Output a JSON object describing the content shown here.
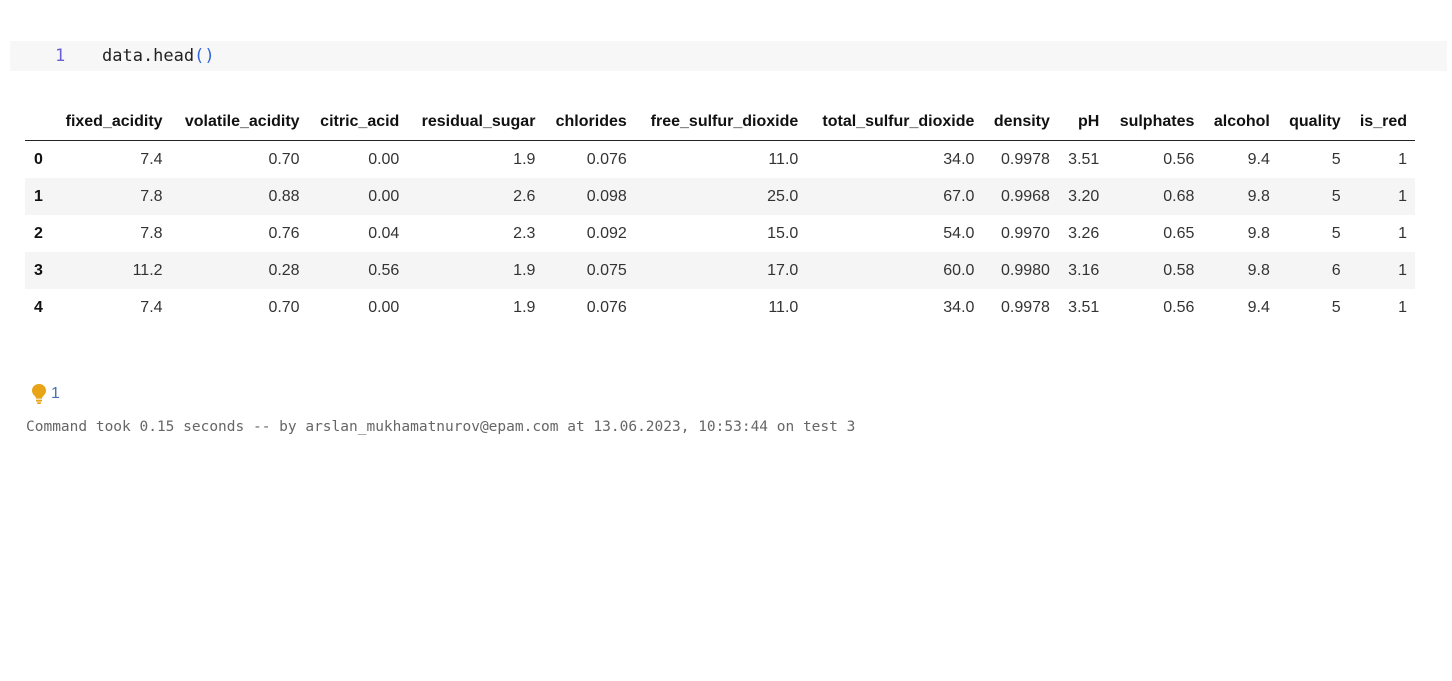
{
  "code_cell": {
    "line_number": "1",
    "code_prefix": "data.head",
    "code_parens": "()"
  },
  "table": {
    "columns": [
      "",
      "fixed_acidity",
      "volatile_acidity",
      "citric_acid",
      "residual_sugar",
      "chlorides",
      "free_sulfur_dioxide",
      "total_sulfur_dioxide",
      "density",
      "pH",
      "sulphates",
      "alcohol",
      "quality",
      "is_red"
    ],
    "rows": [
      [
        "0",
        "7.4",
        "0.70",
        "0.00",
        "1.9",
        "0.076",
        "11.0",
        "34.0",
        "0.9978",
        "3.51",
        "0.56",
        "9.4",
        "5",
        "1"
      ],
      [
        "1",
        "7.8",
        "0.88",
        "0.00",
        "2.6",
        "0.098",
        "25.0",
        "67.0",
        "0.9968",
        "3.20",
        "0.68",
        "9.8",
        "5",
        "1"
      ],
      [
        "2",
        "7.8",
        "0.76",
        "0.04",
        "2.3",
        "0.092",
        "15.0",
        "54.0",
        "0.9970",
        "3.26",
        "0.65",
        "9.8",
        "5",
        "1"
      ],
      [
        "3",
        "11.2",
        "0.28",
        "0.56",
        "1.9",
        "0.075",
        "17.0",
        "60.0",
        "0.9980",
        "3.16",
        "0.58",
        "9.8",
        "6",
        "1"
      ],
      [
        "4",
        "7.4",
        "0.70",
        "0.00",
        "1.9",
        "0.076",
        "11.0",
        "34.0",
        "0.9978",
        "3.51",
        "0.56",
        "9.4",
        "5",
        "1"
      ]
    ]
  },
  "hint": {
    "icon": "lightbulb-icon",
    "count": "1",
    "icon_color": "#e8a317"
  },
  "status": {
    "text": "Command took 0.15 seconds -- by arslan_mukhamatnurov@epam.com at 13.06.2023, 10:53:44 on test 3"
  },
  "colors": {
    "line_number": "#6b5fd6",
    "paren": "#3167d8",
    "row_stripe": "#f5f5f5",
    "code_background": "#f7f7f7"
  }
}
